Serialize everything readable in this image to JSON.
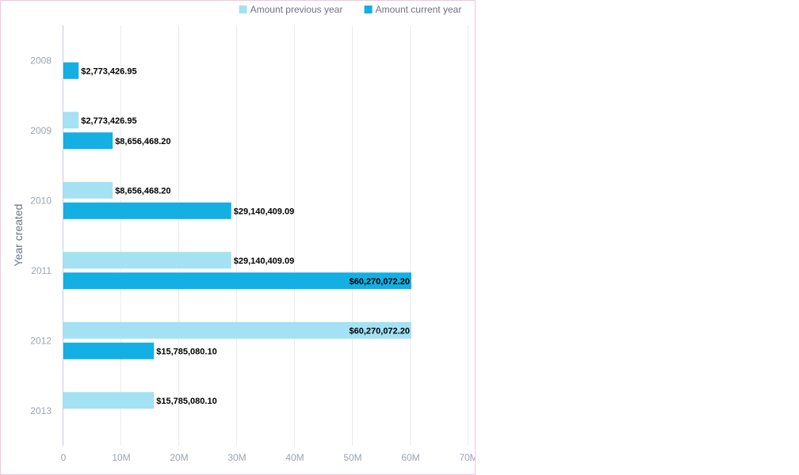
{
  "chart_data": {
    "type": "bar",
    "orientation": "horizontal",
    "title": "",
    "xlabel": "",
    "ylabel": "Year created",
    "categories": [
      "2008",
      "2009",
      "2010",
      "2011",
      "2012",
      "2013"
    ],
    "series": [
      {
        "name": "Amount previous year",
        "color": "#a3e1f3",
        "values": [
          null,
          2773426.95,
          8656468.2,
          29140409.09,
          60270072.2,
          15785080.1
        ],
        "labels": [
          "",
          "$2,773,426.95",
          "$8,656,468.20",
          "$29,140,409.09",
          "$60,270,072.20",
          "$15,785,080.10"
        ]
      },
      {
        "name": "Amount current year",
        "color": "#14afe3",
        "values": [
          2773426.95,
          8656468.2,
          29140409.09,
          60270072.2,
          15785080.1,
          null
        ],
        "labels": [
          "$2,773,426.95",
          "$8,656,468.20",
          "$29,140,409.09",
          "$60,270,072.20",
          "$15,785,080.10",
          ""
        ]
      }
    ],
    "xlim": [
      0,
      70000000
    ],
    "x_ticks": [
      0,
      10000000,
      20000000,
      30000000,
      40000000,
      50000000,
      60000000,
      70000000
    ],
    "x_tick_labels": [
      "0",
      "10M",
      "20M",
      "30M",
      "40M",
      "50M",
      "60M",
      "70M"
    ],
    "grid": true,
    "legend_position": "top-right"
  }
}
